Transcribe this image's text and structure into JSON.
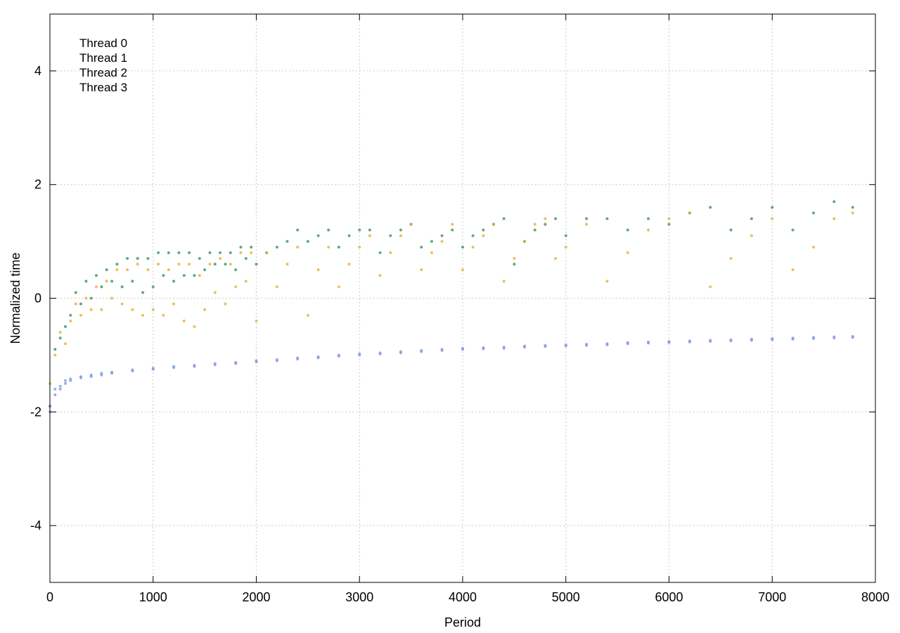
{
  "chart_data": {
    "type": "scatter",
    "title": "",
    "xlabel": "Period",
    "ylabel": "Normalized time",
    "xlim": [
      0,
      8000
    ],
    "ylim": [
      -5,
      5
    ],
    "xticks": [
      0,
      1000,
      2000,
      3000,
      4000,
      5000,
      6000,
      7000,
      8000
    ],
    "xtick_labels": [
      "0",
      "1000",
      "2000",
      "3000",
      "4000",
      "5000",
      "6000",
      "7000",
      "8000"
    ],
    "yticks": [
      -4,
      -2,
      0,
      2,
      4
    ],
    "ytick_labels": [
      "-4",
      "-2",
      "0",
      "2",
      "4"
    ],
    "grid": true,
    "legend_position": "top-left",
    "x_extent": [
      0,
      7780
    ],
    "series": [
      {
        "name": "Thread 0",
        "color": "#2e8b57",
        "pattern": "sawtooth",
        "phase": "first-half",
        "x": [
          0,
          50,
          100,
          150,
          200,
          250,
          300,
          350,
          400,
          450,
          500,
          550,
          600,
          650,
          700,
          750,
          800,
          850,
          900,
          950,
          1000,
          1050,
          1100,
          1150,
          1200,
          1250,
          1300,
          1350,
          1400,
          1450,
          1500,
          1550,
          1600,
          1650,
          1700,
          1750,
          1800,
          1850,
          1900,
          1950,
          2000,
          2100,
          2200,
          2300,
          2400,
          2500,
          2600,
          2700,
          2800,
          2900,
          3000,
          3100,
          3200,
          3300,
          3400,
          3500,
          3600,
          3700,
          3800,
          3900,
          4000,
          4100,
          4200,
          4300,
          4400,
          4500,
          4600,
          4700,
          4800,
          4900,
          5000,
          5200,
          5400,
          5600,
          5800,
          6000,
          6200,
          6400,
          6600,
          6800,
          7000,
          7200,
          7400,
          7600,
          7780
        ],
        "y": [
          -1.9,
          -0.9,
          -0.7,
          -0.5,
          -0.3,
          0.1,
          -0.1,
          0.3,
          0.0,
          0.4,
          0.2,
          0.5,
          0.3,
          0.6,
          0.2,
          0.7,
          0.3,
          0.7,
          0.1,
          0.7,
          0.2,
          0.8,
          0.4,
          0.8,
          0.3,
          0.8,
          0.4,
          0.8,
          0.4,
          0.7,
          0.5,
          0.8,
          0.6,
          0.8,
          0.6,
          0.8,
          0.5,
          0.9,
          0.7,
          0.9,
          0.6,
          0.8,
          0.9,
          1.0,
          1.2,
          1.0,
          1.1,
          1.2,
          0.9,
          1.1,
          1.2,
          1.2,
          0.8,
          1.1,
          1.2,
          1.3,
          0.9,
          1.0,
          1.1,
          1.2,
          0.9,
          1.1,
          1.2,
          1.3,
          1.4,
          0.6,
          1.0,
          1.2,
          1.3,
          1.4,
          1.1,
          1.4,
          1.4,
          1.2,
          1.4,
          1.3,
          1.5,
          1.6,
          1.2,
          1.4,
          1.6,
          1.2,
          1.5,
          1.7,
          1.6
        ]
      },
      {
        "name": "Thread 1",
        "color": "#e6a92e",
        "pattern": "sawtooth",
        "phase": "second-half",
        "x": [
          0,
          50,
          100,
          150,
          200,
          250,
          300,
          350,
          400,
          450,
          500,
          550,
          600,
          650,
          700,
          750,
          800,
          850,
          900,
          950,
          1000,
          1050,
          1100,
          1150,
          1200,
          1250,
          1300,
          1350,
          1400,
          1450,
          1500,
          1550,
          1600,
          1650,
          1700,
          1750,
          1800,
          1850,
          1900,
          1950,
          2000,
          2100,
          2200,
          2300,
          2400,
          2500,
          2600,
          2700,
          2800,
          2900,
          3000,
          3100,
          3200,
          3300,
          3400,
          3500,
          3600,
          3700,
          3800,
          3900,
          4000,
          4100,
          4200,
          4300,
          4400,
          4500,
          4600,
          4700,
          4800,
          4900,
          5000,
          5200,
          5400,
          5600,
          5800,
          6000,
          6200,
          6400,
          6600,
          6800,
          7000,
          7200,
          7400,
          7600,
          7780
        ],
        "y": [
          -1.5,
          -1.0,
          -0.6,
          -0.8,
          -0.4,
          -0.1,
          -0.3,
          0.0,
          -0.2,
          0.2,
          -0.2,
          0.3,
          0.0,
          0.5,
          -0.1,
          0.5,
          -0.2,
          0.6,
          -0.3,
          0.5,
          -0.2,
          0.6,
          -0.3,
          0.5,
          -0.1,
          0.6,
          -0.4,
          0.6,
          -0.5,
          0.4,
          -0.2,
          0.6,
          0.1,
          0.7,
          -0.1,
          0.6,
          0.2,
          0.8,
          0.3,
          0.8,
          -0.4,
          0.8,
          0.2,
          0.6,
          0.9,
          -0.3,
          0.5,
          0.9,
          0.2,
          0.6,
          0.9,
          1.1,
          0.4,
          0.8,
          1.1,
          1.3,
          0.5,
          0.8,
          1.0,
          1.3,
          0.5,
          0.9,
          1.1,
          1.3,
          0.3,
          0.7,
          1.0,
          1.3,
          1.4,
          0.7,
          0.9,
          1.3,
          0.3,
          0.8,
          1.2,
          1.4,
          1.5,
          0.2,
          0.7,
          1.1,
          1.4,
          0.5,
          0.9,
          1.4,
          1.5
        ]
      },
      {
        "name": "Thread 2",
        "color": "#a97ed8",
        "pattern": "baseline",
        "x": [
          0,
          50,
          100,
          150,
          200,
          300,
          400,
          500,
          600,
          800,
          1000,
          1200,
          1400,
          1600,
          1800,
          2000,
          2200,
          2400,
          2600,
          2800,
          3000,
          3200,
          3400,
          3600,
          3800,
          4000,
          4200,
          4400,
          4600,
          4800,
          5000,
          5200,
          5400,
          5600,
          5800,
          6000,
          6200,
          6400,
          6600,
          6800,
          7000,
          7200,
          7400,
          7600,
          7780
        ],
        "y": [
          -2.0,
          -1.7,
          -1.6,
          -1.5,
          -1.45,
          -1.4,
          -1.38,
          -1.35,
          -1.32,
          -1.28,
          -1.25,
          -1.22,
          -1.2,
          -1.17,
          -1.15,
          -1.12,
          -1.1,
          -1.07,
          -1.05,
          -1.02,
          -1.0,
          -0.98,
          -0.96,
          -0.94,
          -0.92,
          -0.9,
          -0.89,
          -0.88,
          -0.86,
          -0.85,
          -0.84,
          -0.83,
          -0.82,
          -0.8,
          -0.79,
          -0.78,
          -0.77,
          -0.76,
          -0.75,
          -0.74,
          -0.73,
          -0.72,
          -0.71,
          -0.7,
          -0.69
        ]
      },
      {
        "name": "Thread 3",
        "color": "#5ba7e3",
        "pattern": "baseline",
        "x": [
          0,
          50,
          100,
          150,
          200,
          300,
          400,
          500,
          600,
          800,
          1000,
          1200,
          1400,
          1600,
          1800,
          2000,
          2200,
          2400,
          2600,
          2800,
          3000,
          3200,
          3400,
          3600,
          3800,
          4000,
          4200,
          4400,
          4600,
          4800,
          5000,
          5200,
          5400,
          5600,
          5800,
          6000,
          6200,
          6400,
          6600,
          6800,
          7000,
          7200,
          7400,
          7600,
          7780
        ],
        "y": [
          -1.9,
          -1.6,
          -1.55,
          -1.45,
          -1.42,
          -1.38,
          -1.35,
          -1.32,
          -1.3,
          -1.26,
          -1.23,
          -1.2,
          -1.18,
          -1.15,
          -1.13,
          -1.1,
          -1.08,
          -1.05,
          -1.03,
          -1.0,
          -0.98,
          -0.96,
          -0.94,
          -0.92,
          -0.9,
          -0.88,
          -0.87,
          -0.86,
          -0.84,
          -0.83,
          -0.82,
          -0.81,
          -0.8,
          -0.78,
          -0.77,
          -0.76,
          -0.75,
          -0.74,
          -0.73,
          -0.72,
          -0.71,
          -0.7,
          -0.69,
          -0.68,
          -0.67
        ]
      }
    ]
  }
}
